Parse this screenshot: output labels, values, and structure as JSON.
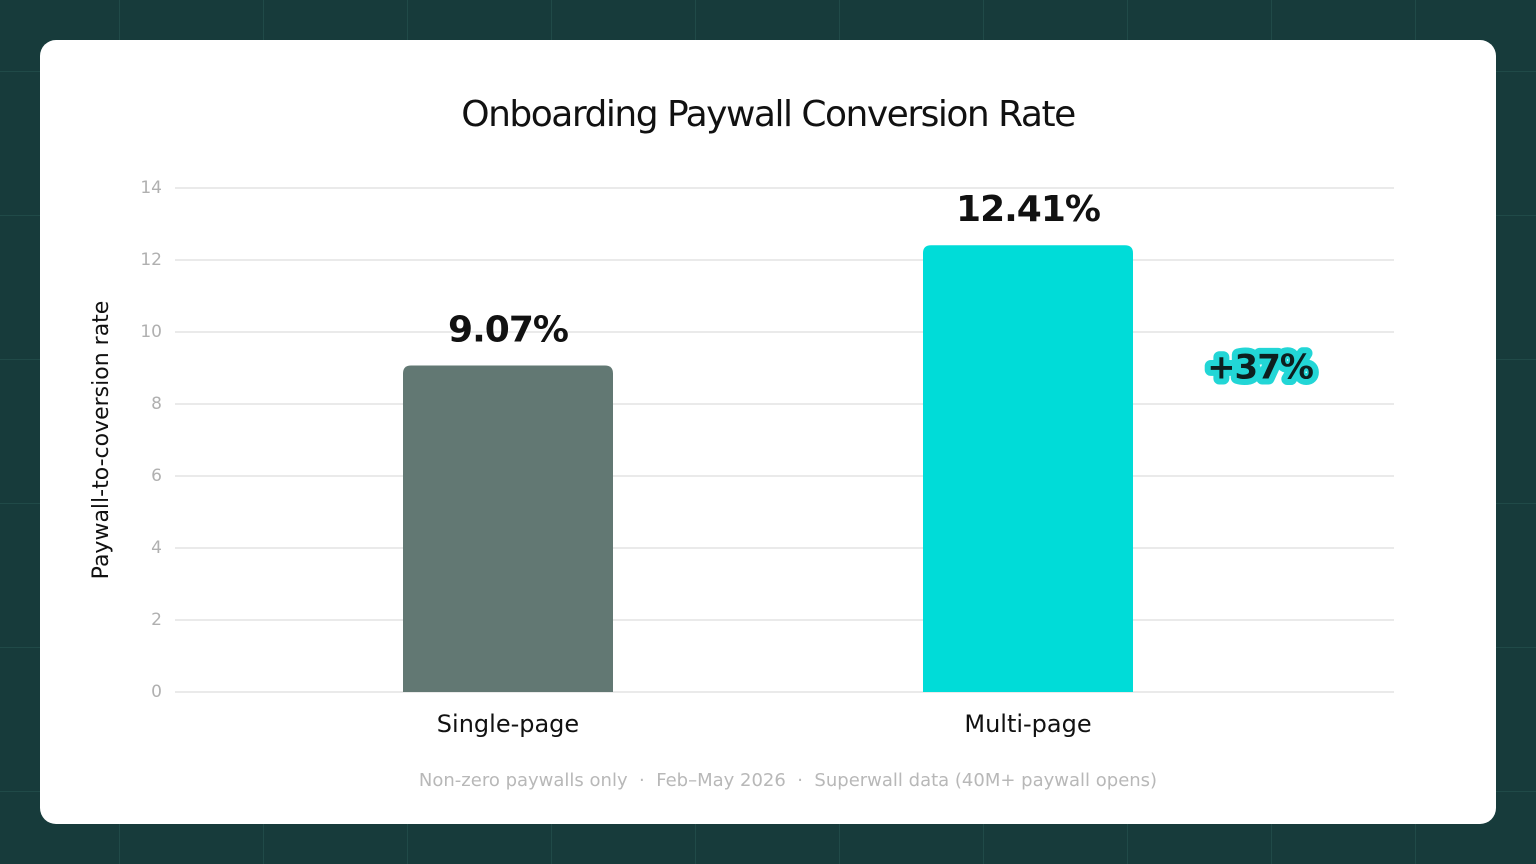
{
  "chart_data": {
    "type": "bar",
    "title": "Onboarding Paywall Conversion Rate",
    "y_label": "Paywall-to-coversion rate",
    "categories": [
      "Single-page",
      "Multi-page"
    ],
    "values": [
      9.07,
      12.41
    ],
    "value_labels": [
      "9.07%",
      "12.41%"
    ],
    "colors": [
      "#627873",
      "#00dcd8"
    ],
    "ylim": [
      0,
      14
    ],
    "yticks": [
      0,
      2,
      4,
      6,
      8,
      10,
      12,
      14
    ],
    "grid": true,
    "annotation": "+37%",
    "footnote": "Non-zero paywalls only  ·  Feb–May 2026  ·  Superwall data (40M+ paywall opens)"
  }
}
